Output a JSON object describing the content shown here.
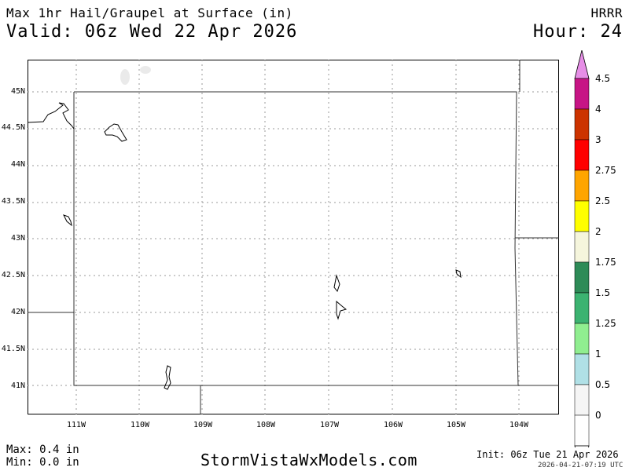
{
  "header": {
    "title": "Max 1hr Hail/Graupel at Surface (in)",
    "valid": "Valid: 06z Wed 22 Apr 2026",
    "model": "HRRR",
    "hour": "Hour: 24"
  },
  "map": {
    "region": "Wyoming",
    "lat_labels": [
      "45N",
      "44.5N",
      "44N",
      "43.5N",
      "43N",
      "42.5N",
      "42N",
      "41.5N",
      "41N"
    ],
    "lon_labels": [
      "111W",
      "110W",
      "109W",
      "108W",
      "107W",
      "106W",
      "105W",
      "104W"
    ],
    "grid_lines": "dotted"
  },
  "colorbar": {
    "labels": [
      "4.5",
      "4",
      "3",
      "2.75",
      "2.5",
      "2",
      "1.75",
      "1.5",
      "1.25",
      "1",
      "0.5",
      "0"
    ],
    "colors": [
      "#e68ee6",
      "#c71585",
      "#cc3300",
      "#ff0000",
      "#ffa500",
      "#ffff00",
      "#f5f5dc",
      "#2e8b57",
      "#3cb371",
      "#90ee90",
      "#b0e0e6",
      "#f5f5f5",
      "#ffffff"
    ]
  },
  "footer": {
    "max": "Max: 0.4 in",
    "min": "Min: 0.0 in",
    "site": "StormVistaWxModels.com",
    "init": "Init: 06z Tue 21 Apr 2026",
    "stamp": "2026-04-21-07:19 UTC"
  }
}
